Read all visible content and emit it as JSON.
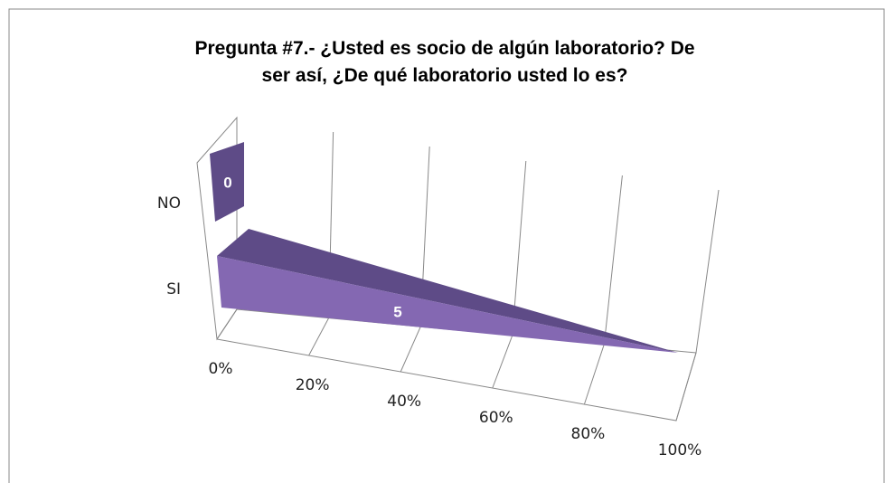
{
  "chart_data": {
    "type": "bar3d",
    "title": "Pregunta #7.- ¿Usted es socio de algún laboratorio? De ser así, ¿De qué laboratorio usted lo es?",
    "categories": [
      "NO",
      "SI"
    ],
    "values": [
      0,
      5
    ],
    "value_labels": [
      "0",
      "5"
    ],
    "colors": [
      "#5e4b87",
      "#8468b2"
    ],
    "xlim": [
      0,
      100
    ],
    "xticks": [
      {
        "value": 0,
        "label": "0%"
      },
      {
        "value": 20,
        "label": "20%"
      },
      {
        "value": 40,
        "label": "40%"
      },
      {
        "value": 60,
        "label": "60%"
      },
      {
        "value": 80,
        "label": "80%"
      },
      {
        "value": 100,
        "label": "100%"
      }
    ],
    "grid": true
  }
}
